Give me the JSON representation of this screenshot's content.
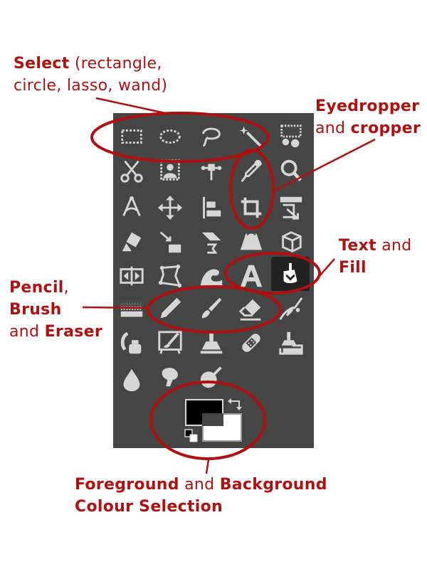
{
  "toolbox": {
    "background": "#454545",
    "icon_color": "#d6d6d6",
    "rows": [
      [
        "rectangle-select",
        "ellipse-select",
        "lasso-select",
        "fuzzy-select",
        "select-by-color"
      ],
      [
        "scissors-select",
        "foreground-select",
        "paths",
        "color-picker",
        "zoom"
      ],
      [
        "measure",
        "move",
        "align",
        "crop",
        "unified-transform"
      ],
      [
        "warp-transform",
        "handle-transform",
        "shear",
        "perspective",
        "3d-transform"
      ],
      [
        "flip",
        "cage-transform",
        "warp",
        "text",
        "bucket-fill"
      ],
      [
        "gradient",
        "pencil",
        "paintbrush",
        "eraser",
        "airbrush"
      ],
      [
        "ink",
        "mypaint-brush",
        "clone",
        "heal",
        "perspective-clone"
      ],
      [
        "blur",
        "smudge",
        "dodge-burn"
      ]
    ],
    "active_tool": "bucket-fill",
    "foreground_color": "#000000",
    "background_color": "#ffffff"
  },
  "annotations": {
    "color": "#b01010",
    "select": {
      "bold": "Select",
      "rest_line1": " (rectangle,",
      "line2": "circle, lasso, wand)"
    },
    "eyedropper": {
      "line1_bold": "Eyedropper",
      "line2_plain": "and ",
      "line2_bold": "cropper"
    },
    "text_fill": {
      "line1_bold": "Text",
      "line1_plain": " and",
      "line2_bold": "Fill"
    },
    "pencil": {
      "line1_bold": "Pencil",
      "line1_plain": ",",
      "line2_bold": "Brush",
      "line3_plain": "and ",
      "line3_bold": "Eraser"
    },
    "colours": {
      "line1_bold_a": "Foreground",
      "line1_plain": " and ",
      "line1_bold_b": "Background",
      "line2_bold": "Colour Selection"
    }
  }
}
